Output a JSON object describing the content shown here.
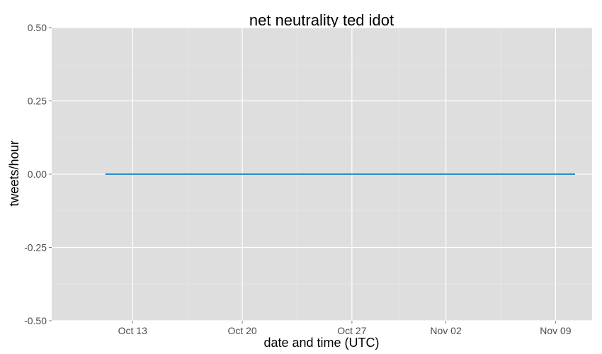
{
  "chart_data": {
    "type": "line",
    "title": "net neutrality ted idot",
    "xlabel": "date and time (UTC)",
    "ylabel": "tweets/hour",
    "ylim": [
      -0.5,
      0.5
    ],
    "xlim": [
      "2014-10-07T20:00",
      "2014-11-11T08:00"
    ],
    "y_ticks": [
      {
        "value": 0.5,
        "label": "0.50"
      },
      {
        "value": 0.25,
        "label": "0.25"
      },
      {
        "value": 0.0,
        "label": "0.00"
      },
      {
        "value": -0.25,
        "label": "-0.25"
      },
      {
        "value": -0.5,
        "label": "-0.50"
      }
    ],
    "x_ticks": [
      {
        "value": "2014-10-13",
        "label": "Oct 13"
      },
      {
        "value": "2014-10-20",
        "label": "Oct 20"
      },
      {
        "value": "2014-10-27",
        "label": "Oct 27"
      },
      {
        "value": "2014-11-02",
        "label": "Nov 02"
      },
      {
        "value": "2014-11-09",
        "label": "Nov 09"
      }
    ],
    "grid": true,
    "series": [
      {
        "x": [
          "2014-10-11T06:00",
          "2014-11-10T06:00"
        ],
        "values": [
          0,
          0
        ]
      }
    ],
    "colors": {
      "panel_background": "#dedede",
      "grid_major": "#ffffff",
      "grid_minor": "#e8e8e8",
      "line": "#2d8ac7",
      "tick_label": "#4d4d4d"
    }
  }
}
